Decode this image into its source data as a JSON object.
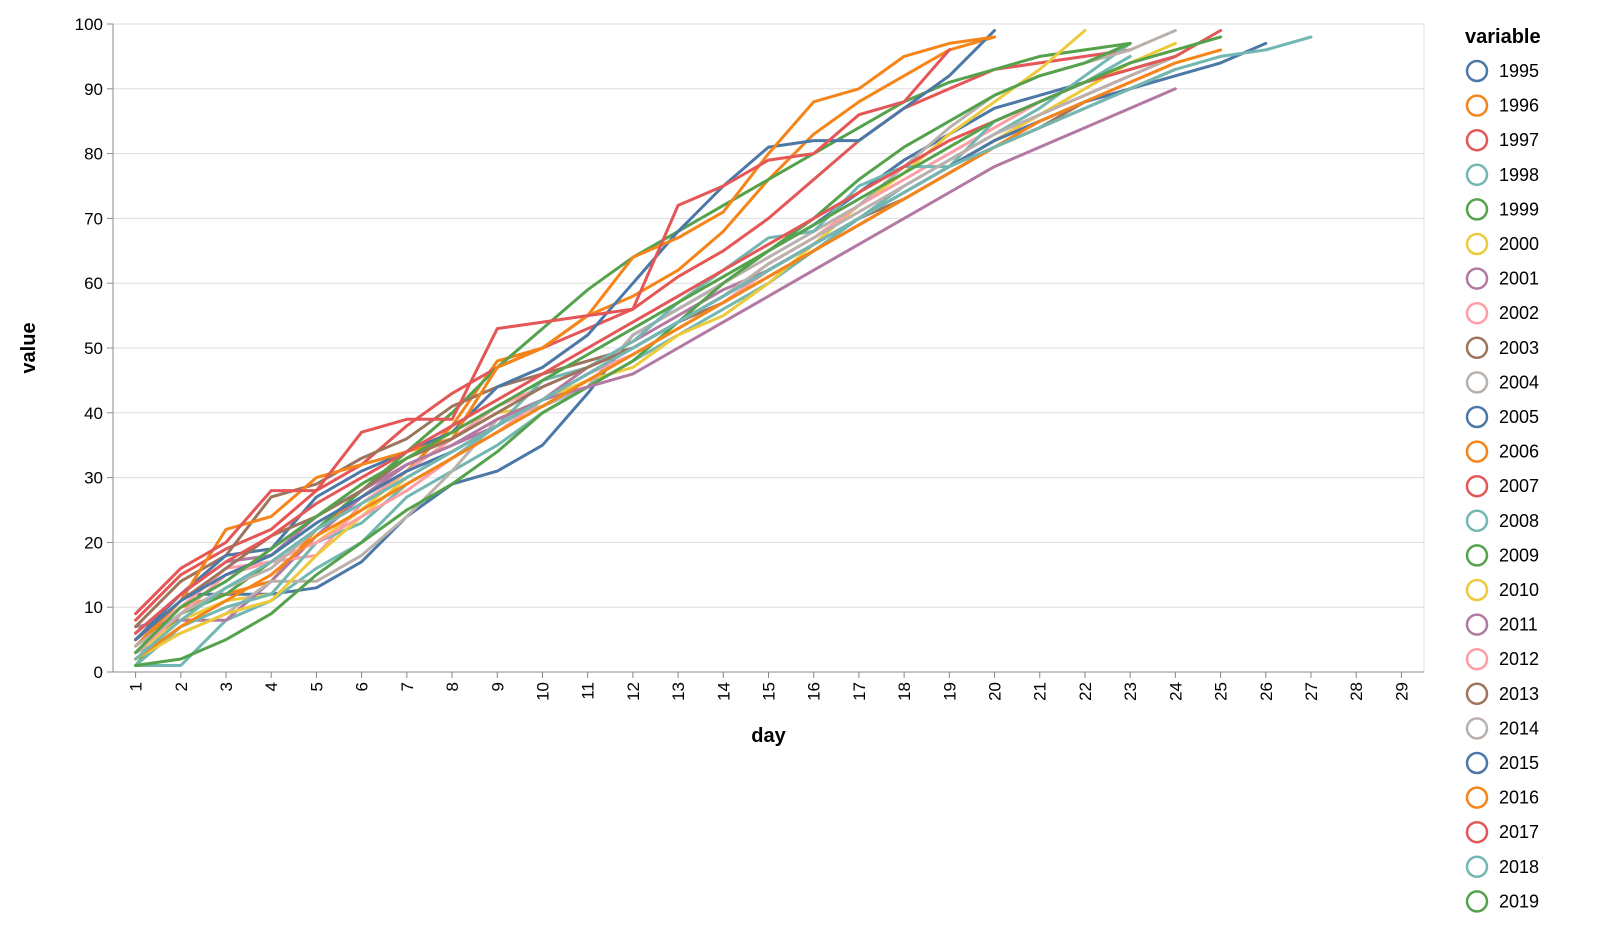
{
  "chart_data": {
    "type": "line",
    "xlabel": "day",
    "ylabel": "value",
    "xlim": [
      1,
      29
    ],
    "ylim": [
      0,
      100
    ],
    "x_ticks": [
      1,
      2,
      3,
      4,
      5,
      6,
      7,
      8,
      9,
      10,
      11,
      12,
      13,
      14,
      15,
      16,
      17,
      18,
      19,
      20,
      21,
      22,
      23,
      24,
      25,
      26,
      27,
      28,
      29
    ],
    "y_ticks": [
      0,
      10,
      20,
      30,
      40,
      50,
      60,
      70,
      80,
      90,
      100
    ],
    "grid": "horizontal",
    "legend_title": "variable",
    "legend_position": "right",
    "series": [
      {
        "name": "1995",
        "color": "#4c78a8",
        "values": [
          6,
          12,
          12,
          12,
          13,
          17,
          24,
          29,
          31,
          35,
          43,
          52,
          56,
          60,
          65,
          69,
          74,
          79,
          83,
          87,
          89,
          91,
          93,
          95
        ]
      },
      {
        "name": "1996",
        "color": "#f58518",
        "values": [
          4,
          10,
          12,
          14,
          22,
          27,
          31,
          38,
          48,
          50,
          55,
          58,
          62,
          68,
          76,
          83,
          88,
          92,
          96,
          98
        ]
      },
      {
        "name": "1997",
        "color": "#e45756",
        "values": [
          8,
          15,
          19,
          22,
          28,
          32,
          38,
          43,
          47,
          50,
          53,
          56,
          61,
          65,
          70,
          76,
          82,
          87,
          90,
          93,
          94,
          95,
          96
        ]
      },
      {
        "name": "1998",
        "color": "#72b7b2",
        "values": [
          1,
          1,
          8,
          11,
          16,
          20,
          27,
          31,
          35,
          40,
          44,
          48,
          52,
          56,
          60,
          65,
          70,
          75,
          79,
          83,
          87,
          92,
          97
        ]
      },
      {
        "name": "1999",
        "color": "#54a24b",
        "values": [
          1,
          9,
          12,
          17,
          22,
          28,
          34,
          40,
          47,
          53,
          59,
          64,
          68,
          72,
          76,
          80,
          84,
          88,
          91,
          93,
          95,
          96,
          97
        ]
      },
      {
        "name": "2000",
        "color": "#eeca3b",
        "values": [
          3,
          8,
          11,
          12,
          20,
          25,
          31,
          36,
          40,
          41,
          45,
          47,
          52,
          55,
          60,
          66,
          72,
          77,
          83,
          88,
          93,
          99
        ]
      },
      {
        "name": "2001",
        "color": "#b279a2",
        "values": [
          7,
          8,
          8,
          14,
          21,
          27,
          32,
          35,
          38,
          42,
          47,
          51,
          55,
          59,
          62,
          66,
          70,
          74,
          78,
          82,
          86,
          89,
          92,
          95
        ]
      },
      {
        "name": "2002",
        "color": "#ff9da6",
        "values": [
          5,
          10,
          16,
          17,
          18,
          26,
          31,
          36,
          41,
          44,
          47,
          50,
          54,
          58,
          63,
          67,
          72,
          76,
          80,
          84,
          88,
          91,
          94,
          96
        ]
      },
      {
        "name": "2003",
        "color": "#9d755d",
        "values": [
          7,
          14,
          18,
          27,
          29,
          33,
          36,
          41,
          44,
          46,
          48,
          50,
          54,
          57,
          61,
          65,
          69,
          73,
          77,
          81,
          84,
          88,
          90,
          93
        ]
      },
      {
        "name": "2004",
        "color": "#bab0ac",
        "values": [
          3,
          6,
          9,
          14,
          14,
          18,
          24,
          31,
          39,
          41,
          44,
          52,
          56,
          60,
          64,
          68,
          72,
          78,
          84,
          89,
          92,
          94,
          96,
          99
        ]
      },
      {
        "name": "2005",
        "color": "#4c78a8",
        "values": [
          5,
          12,
          18,
          19,
          27,
          31,
          34,
          37,
          44,
          47,
          52,
          60,
          68,
          75,
          81,
          82,
          82,
          87,
          92,
          99
        ]
      },
      {
        "name": "2006",
        "color": "#f58518",
        "values": [
          4,
          11,
          22,
          24,
          30,
          32,
          34,
          36,
          47,
          50,
          55,
          64,
          67,
          71,
          80,
          88,
          90,
          95,
          97,
          98
        ]
      },
      {
        "name": "2007",
        "color": "#e45756",
        "values": [
          9,
          16,
          20,
          28,
          28,
          37,
          39,
          39,
          53,
          54,
          55,
          56,
          72,
          75,
          79,
          80,
          86,
          88,
          96
        ]
      },
      {
        "name": "2008",
        "color": "#72b7b2",
        "values": [
          1,
          7,
          10,
          12,
          20,
          23,
          29,
          33,
          38,
          45,
          47,
          51,
          57,
          62,
          67,
          68,
          75,
          78,
          78,
          85,
          88,
          91,
          95
        ]
      },
      {
        "name": "2009",
        "color": "#54a24b",
        "values": [
          1,
          2,
          5,
          9,
          15,
          20,
          25,
          29,
          34,
          40,
          44,
          48,
          54,
          60,
          65,
          70,
          76,
          81,
          85,
          89,
          92,
          94,
          97
        ]
      },
      {
        "name": "2010",
        "color": "#eeca3b",
        "values": [
          2,
          6,
          9,
          11,
          18,
          24,
          30,
          34,
          38,
          42,
          45,
          49,
          53,
          57,
          62,
          66,
          70,
          74,
          78,
          82,
          86,
          90,
          94,
          97
        ]
      },
      {
        "name": "2011",
        "color": "#b279a2",
        "values": [
          6,
          12,
          17,
          18,
          24,
          28,
          32,
          35,
          39,
          42,
          44,
          46,
          50,
          54,
          58,
          62,
          66,
          70,
          74,
          78,
          81,
          84,
          87,
          90
        ]
      },
      {
        "name": "2012",
        "color": "#ff9da6",
        "values": [
          3,
          9,
          15,
          17,
          20,
          24,
          28,
          33,
          37,
          42,
          46,
          49,
          53,
          57,
          62,
          66,
          70,
          74,
          78,
          82,
          85,
          88,
          91,
          94
        ]
      },
      {
        "name": "2013",
        "color": "#9d755d",
        "values": [
          5,
          11,
          16,
          21,
          24,
          28,
          33,
          36,
          40,
          44,
          47,
          50,
          54,
          58,
          62,
          66,
          70,
          73,
          77,
          81,
          84,
          87,
          90,
          93
        ]
      },
      {
        "name": "2014",
        "color": "#bab0ac",
        "values": [
          4,
          9,
          13,
          16,
          22,
          26,
          30,
          34,
          38,
          42,
          46,
          50,
          54,
          58,
          63,
          67,
          71,
          75,
          79,
          83,
          86,
          89,
          92,
          95
        ]
      },
      {
        "name": "2015",
        "color": "#4c78a8",
        "values": [
          5,
          11,
          15,
          18,
          23,
          27,
          31,
          34,
          38,
          42,
          46,
          50,
          54,
          58,
          62,
          66,
          70,
          74,
          78,
          82,
          85,
          88,
          90,
          92,
          94,
          97
        ]
      },
      {
        "name": "2016",
        "color": "#f58518",
        "values": [
          2,
          7,
          11,
          15,
          21,
          25,
          29,
          33,
          37,
          41,
          45,
          49,
          53,
          57,
          61,
          65,
          69,
          73,
          77,
          81,
          85,
          88,
          91,
          94,
          96
        ]
      },
      {
        "name": "2017",
        "color": "#e45756",
        "values": [
          6,
          12,
          17,
          21,
          26,
          30,
          34,
          38,
          42,
          46,
          50,
          54,
          58,
          62,
          66,
          70,
          74,
          78,
          82,
          85,
          88,
          91,
          93,
          95,
          99
        ]
      },
      {
        "name": "2018",
        "color": "#72b7b2",
        "values": [
          2,
          8,
          13,
          17,
          22,
          26,
          30,
          34,
          38,
          42,
          46,
          50,
          54,
          58,
          62,
          66,
          70,
          74,
          78,
          81,
          84,
          87,
          90,
          93,
          95,
          96,
          98
        ]
      },
      {
        "name": "2019",
        "color": "#54a24b",
        "values": [
          3,
          10,
          14,
          19,
          24,
          29,
          33,
          37,
          41,
          45,
          49,
          53,
          57,
          61,
          65,
          69,
          73,
          77,
          81,
          85,
          88,
          91,
          94,
          96,
          98
        ]
      }
    ]
  }
}
